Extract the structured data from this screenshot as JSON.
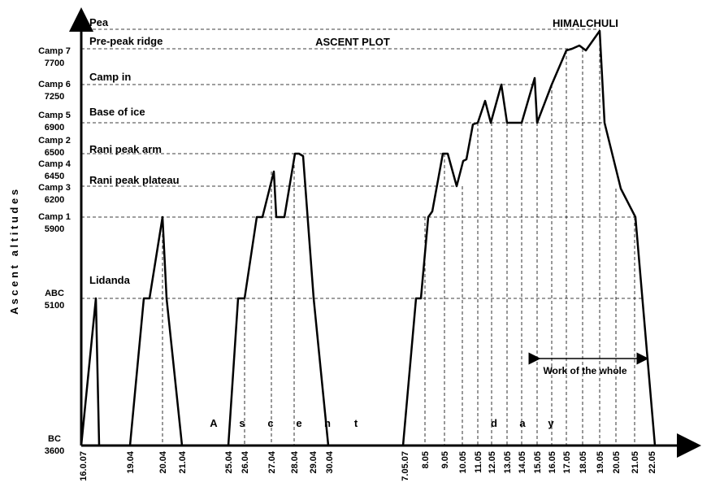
{
  "title": "ASCENT PLOT",
  "peak": "HIMALCHULI",
  "y_axis_title": "A s c e n t   a l t i t u d e s",
  "x_axis_letters": [
    "A",
    "s",
    "c",
    "e",
    "n",
    "t",
    "d",
    "a",
    "y"
  ],
  "camps": [
    {
      "name": "Camp 7",
      "altitude": "7700"
    },
    {
      "name": "Camp 6",
      "altitude": "7250"
    },
    {
      "name": "Camp 5",
      "altitude": "6900"
    },
    {
      "name": "Camp 2",
      "altitude": "6500"
    },
    {
      "name": "Camp 4",
      "altitude": "6450"
    },
    {
      "name": "Camp 3",
      "altitude": "6200"
    },
    {
      "name": "Camp 1",
      "altitude": "5900"
    },
    {
      "name": "ABC",
      "altitude": "5100"
    },
    {
      "name": "BC",
      "altitude": "3600"
    }
  ],
  "levels": [
    "Pea",
    "Pre-peak ridge",
    "Camp in",
    "Base of ice",
    "Rani peak arm",
    "Rani peak plateau",
    "Lidanda"
  ],
  "dates": [
    "16.0.07",
    "19.04",
    "20.04",
    "21.04",
    "25.04",
    "26.04",
    "27.04",
    "28.04",
    "29.04",
    "30.04",
    "7.05.07",
    "8.05",
    "9.05",
    "10.05",
    "11.05",
    "12.05",
    "13.05",
    "14.05",
    "15.05",
    "16.05",
    "17.05",
    "18.05",
    "19.05",
    "20.05",
    "21.05",
    "22.05"
  ],
  "annotation": "Work of the whole"
}
